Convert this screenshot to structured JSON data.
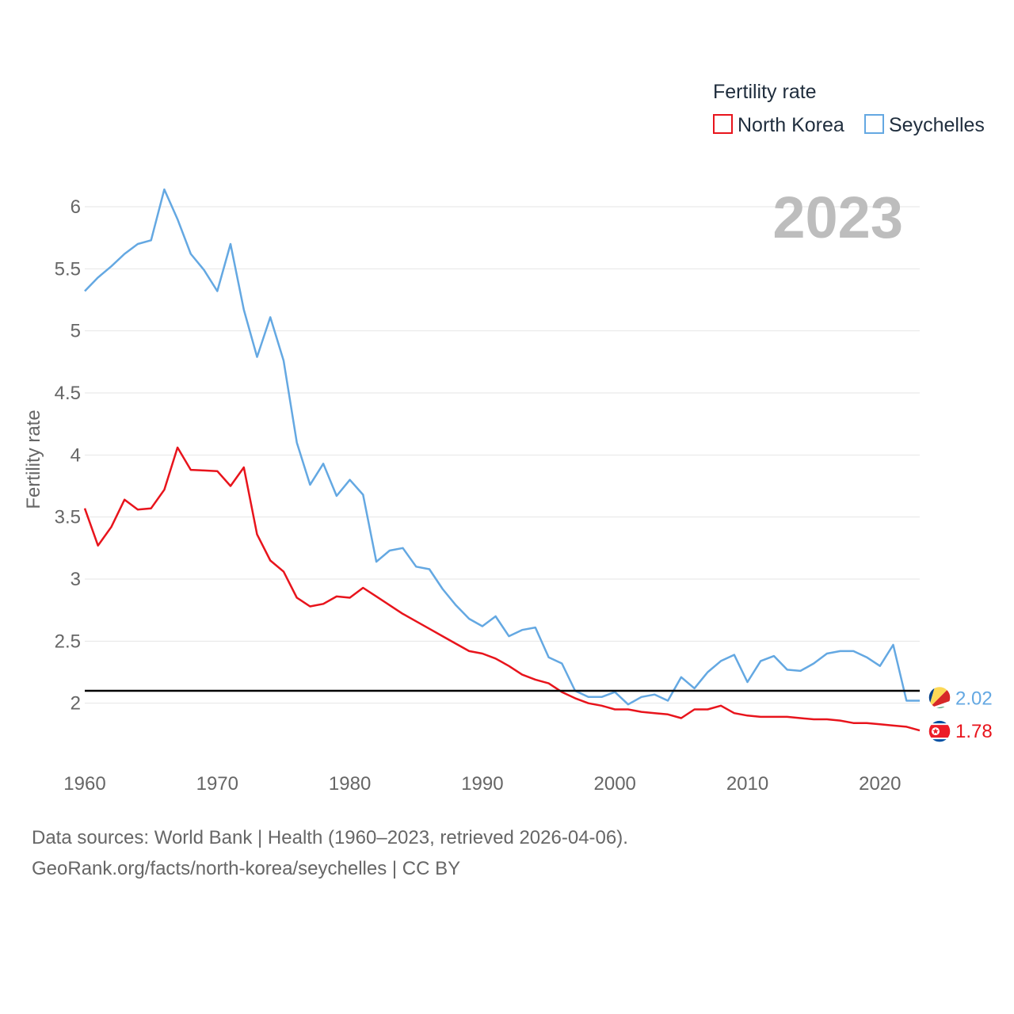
{
  "chart_data": {
    "type": "line",
    "title": "Fertility rate",
    "ylabel": "Fertility rate",
    "xlabel": "",
    "current_year": "2023",
    "xlim": [
      1960,
      2023
    ],
    "ylim": [
      1.5,
      6.3
    ],
    "yticks": [
      2,
      2.5,
      3,
      3.5,
      4,
      4.5,
      5,
      5.5,
      6
    ],
    "ytick_labels": [
      "2",
      "2.5",
      "3",
      "3.5",
      "4",
      "4.5",
      "5",
      "5.5",
      "6"
    ],
    "xticks": [
      1960,
      1970,
      1980,
      1990,
      2000,
      2010,
      2020
    ],
    "xtick_labels": [
      "1960",
      "1970",
      "1980",
      "1990",
      "2000",
      "2010",
      "2020"
    ],
    "reference_line": 2.1,
    "legend_title": "Fertility rate",
    "years": [
      1960,
      1961,
      1962,
      1963,
      1964,
      1965,
      1966,
      1967,
      1968,
      1969,
      1970,
      1971,
      1972,
      1973,
      1974,
      1975,
      1976,
      1977,
      1978,
      1979,
      1980,
      1981,
      1982,
      1983,
      1984,
      1985,
      1986,
      1987,
      1988,
      1989,
      1990,
      1991,
      1992,
      1993,
      1994,
      1995,
      1996,
      1997,
      1998,
      1999,
      2000,
      2001,
      2002,
      2003,
      2004,
      2005,
      2006,
      2007,
      2008,
      2009,
      2010,
      2011,
      2012,
      2013,
      2014,
      2015,
      2016,
      2017,
      2018,
      2019,
      2020,
      2021,
      2022,
      2023
    ],
    "series": [
      {
        "name": "North Korea",
        "color": "#e8141c",
        "end_label": "1.78",
        "values": [
          3.57,
          3.27,
          3.42,
          3.64,
          3.56,
          3.57,
          3.72,
          4.06,
          3.88,
          3.875,
          3.87,
          3.75,
          3.9,
          3.36,
          3.15,
          3.06,
          2.85,
          2.78,
          2.8,
          2.86,
          2.85,
          2.93,
          2.86,
          2.79,
          2.72,
          2.66,
          2.6,
          2.54,
          2.48,
          2.42,
          2.4,
          2.36,
          2.3,
          2.23,
          2.19,
          2.16,
          2.09,
          2.04,
          2.0,
          1.98,
          1.95,
          1.95,
          1.93,
          1.92,
          1.91,
          1.88,
          1.95,
          1.95,
          1.98,
          1.92,
          1.9,
          1.89,
          1.89,
          1.89,
          1.88,
          1.87,
          1.87,
          1.86,
          1.84,
          1.84,
          1.83,
          1.82,
          1.81,
          1.78
        ]
      },
      {
        "name": "Seychelles",
        "color": "#64a8e2",
        "end_label": "2.02",
        "values": [
          5.32,
          5.43,
          5.52,
          5.62,
          5.7,
          5.73,
          6.14,
          5.9,
          5.62,
          5.49,
          5.32,
          5.7,
          5.17,
          4.79,
          5.11,
          4.76,
          4.1,
          3.76,
          3.93,
          3.67,
          3.8,
          3.68,
          3.14,
          3.23,
          3.25,
          3.1,
          3.08,
          2.92,
          2.79,
          2.68,
          2.62,
          2.7,
          2.54,
          2.59,
          2.61,
          2.37,
          2.32,
          2.1,
          2.05,
          2.05,
          2.09,
          1.99,
          2.05,
          2.07,
          2.02,
          2.21,
          2.12,
          2.25,
          2.34,
          2.39,
          2.17,
          2.34,
          2.38,
          2.27,
          2.26,
          2.32,
          2.4,
          2.42,
          2.42,
          2.37,
          2.3,
          2.47,
          2.02,
          2.02
        ]
      }
    ]
  },
  "footer": {
    "sources": "Data sources: World Bank | Health (1960–2023, retrieved 2026-04-06).",
    "url": "GeoRank.org/facts/north-korea/seychelles | CC BY"
  }
}
